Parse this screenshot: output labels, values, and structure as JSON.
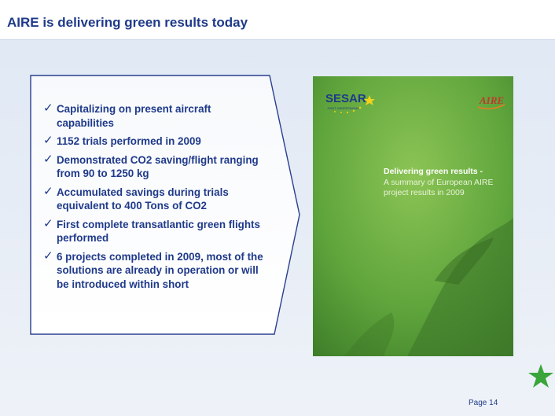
{
  "slide": {
    "title": "AIRE is delivering green results today",
    "bullets": [
      "Capitalizing on present aircraft capabilities",
      "1152 trials performed in 2009",
      "Demonstrated CO2 saving/flight ranging from 90 to 1250 kg",
      "Accumulated savings during trials equivalent to 400 Tons of CO2",
      "First complete transatlantic green flights performed",
      "6 projects completed in 2009, most of the solutions are already in operation or will be introduced within short"
    ],
    "check_glyph": "✓",
    "page_number": "Page 14"
  },
  "cover": {
    "logo_left": "SESAR",
    "logo_left_sub": "JOINT UNDERTAKING",
    "logo_right": "AIRE",
    "heading": "Delivering green results -",
    "subtitle_lines": [
      "A summary of European AIRE",
      "project results in 2009"
    ]
  },
  "colors": {
    "title_text": "#1f3a8a",
    "cover_green": "#5aa03a",
    "star_green": "#3aa53a",
    "bullet_panel": "#f4f7fb"
  },
  "icons": [
    "check-icon",
    "star-icon"
  ]
}
